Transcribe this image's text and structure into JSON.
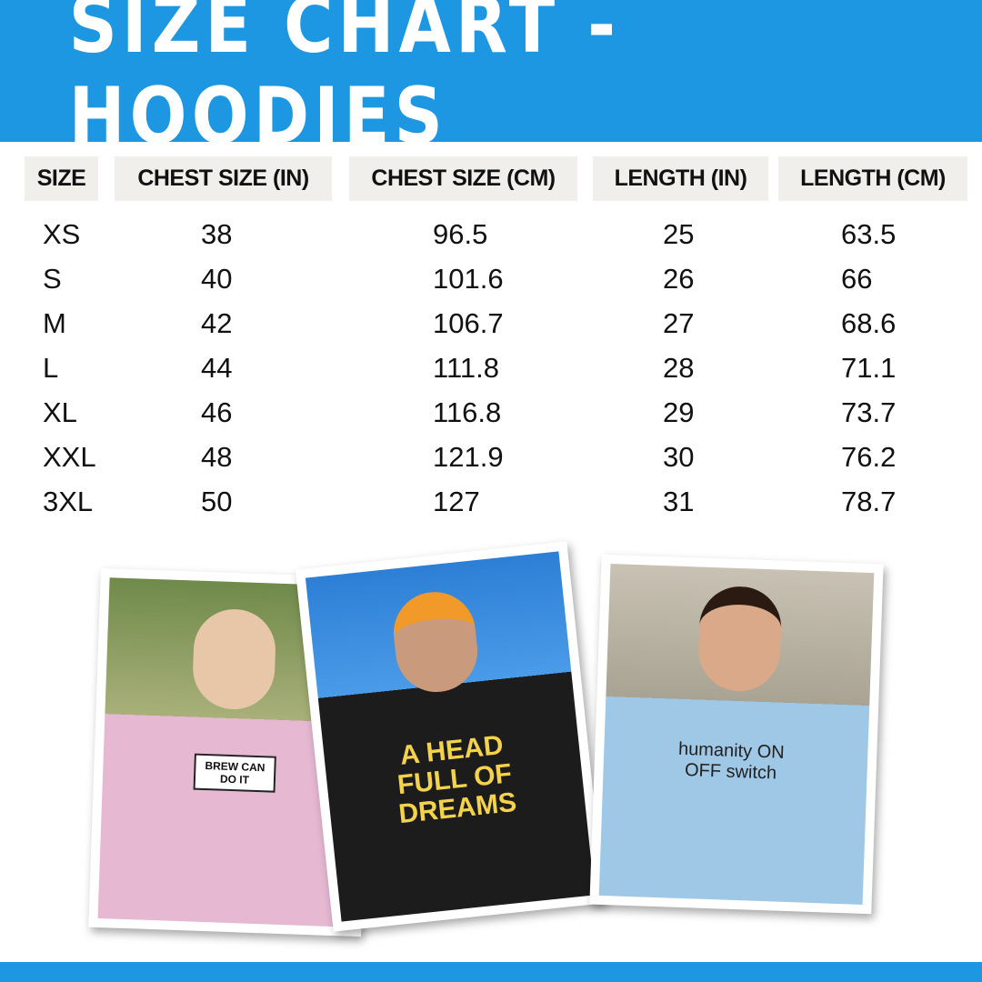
{
  "title": "SIZE CHART - HOODIES",
  "table": {
    "headers": [
      "SIZE",
      "CHEST SIZE (IN)",
      "CHEST SIZE (CM)",
      "LENGTH (IN)",
      "LENGTH (CM)"
    ],
    "rows": [
      [
        "XS",
        "38",
        "96.5",
        "25",
        "63.5"
      ],
      [
        "S",
        "40",
        "101.6",
        "26",
        "66"
      ],
      [
        "M",
        "42",
        "106.7",
        "27",
        "68.6"
      ],
      [
        "L",
        "44",
        "111.8",
        "28",
        "71.1"
      ],
      [
        "XL",
        "46",
        "116.8",
        "29",
        "73.7"
      ],
      [
        "XXL",
        "48",
        "121.9",
        "30",
        "76.2"
      ],
      [
        "3XL",
        "50",
        "127",
        "31",
        "78.7"
      ]
    ]
  },
  "photos": [
    {
      "hoodie_color": "#e6b8d2",
      "print": "BREW CAN DO IT"
    },
    {
      "hoodie_color": "#1c1c1c",
      "print": "A HEAD FULL OF DREAMS"
    },
    {
      "hoodie_color": "#9fc8e6",
      "print": "humanity ON OFF switch"
    }
  ],
  "colors": {
    "brand_blue": "#1e97e3",
    "header_cell": "#f0efeb"
  }
}
